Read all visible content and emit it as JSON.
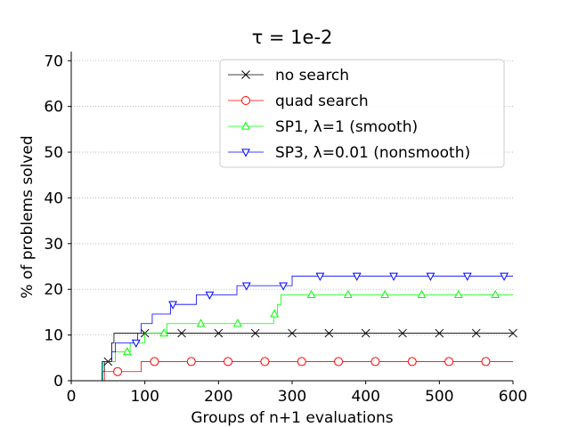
{
  "chart_data": {
    "type": "line",
    "title": "τ = 1e-2",
    "xlabel": "Groups of n+1 evaluations",
    "ylabel": "% of problems solved",
    "xlim": [
      0,
      600
    ],
    "ylim": [
      0,
      72
    ],
    "xticks": [
      0,
      100,
      200,
      300,
      400,
      500,
      600
    ],
    "yticks": [
      0,
      10,
      20,
      30,
      40,
      50,
      60,
      70
    ],
    "xtick_labels": [
      "0",
      "100",
      "200",
      "300",
      "400",
      "500",
      "600"
    ],
    "ytick_labels": [
      "0",
      "10",
      "20",
      "30",
      "40",
      "50",
      "60",
      "70"
    ],
    "grid": "horizontal dotted",
    "legend_position": "top-right",
    "series": [
      {
        "name": "no search",
        "color": "#000000",
        "marker": "x",
        "step": [
          [
            0,
            0
          ],
          [
            38,
            0
          ],
          [
            42,
            2
          ],
          [
            45,
            4.2
          ],
          [
            55,
            8.3
          ],
          [
            58,
            10.4
          ],
          [
            600,
            10.4
          ]
        ],
        "markers_x": [
          50,
          100,
          150,
          200,
          250,
          300,
          350,
          400,
          450,
          500,
          550,
          600
        ]
      },
      {
        "name": "quad search",
        "color": "#ff0000",
        "marker": "o",
        "step": [
          [
            0,
            0
          ],
          [
            40,
            0
          ],
          [
            45,
            2
          ],
          [
            90,
            2
          ],
          [
            95,
            4.2
          ],
          [
            600,
            4.2
          ]
        ],
        "markers_x": [
          63,
          113,
          163,
          213,
          263,
          313,
          363,
          413,
          463,
          513,
          563
        ]
      },
      {
        "name": "SP1, λ=1 (smooth)",
        "color": "#00ff00",
        "marker": "^",
        "step": [
          [
            0,
            0
          ],
          [
            40,
            0
          ],
          [
            43,
            4.2
          ],
          [
            60,
            6.3
          ],
          [
            80,
            8.3
          ],
          [
            100,
            10.4
          ],
          [
            130,
            12.5
          ],
          [
            270,
            12.5
          ],
          [
            275,
            14.6
          ],
          [
            280,
            16.7
          ],
          [
            285,
            18.8
          ],
          [
            600,
            18.8
          ]
        ],
        "markers_x": [
          76,
          126,
          176,
          226,
          276,
          326,
          376,
          426,
          476,
          526,
          576
        ]
      },
      {
        "name": "SP3, λ=0.01 (nonsmooth)",
        "color": "#0000ff",
        "marker": "v",
        "step": [
          [
            0,
            0
          ],
          [
            38,
            0
          ],
          [
            42,
            4.2
          ],
          [
            55,
            6.3
          ],
          [
            60,
            8.3
          ],
          [
            90,
            10.4
          ],
          [
            95,
            12.5
          ],
          [
            110,
            14.6
          ],
          [
            135,
            16.7
          ],
          [
            170,
            18.8
          ],
          [
            225,
            20.8
          ],
          [
            290,
            20.8
          ],
          [
            300,
            22.9
          ],
          [
            600,
            22.9
          ]
        ],
        "markers_x": [
          88,
          138,
          188,
          238,
          288,
          338,
          388,
          438,
          488,
          538,
          588
        ]
      }
    ]
  }
}
